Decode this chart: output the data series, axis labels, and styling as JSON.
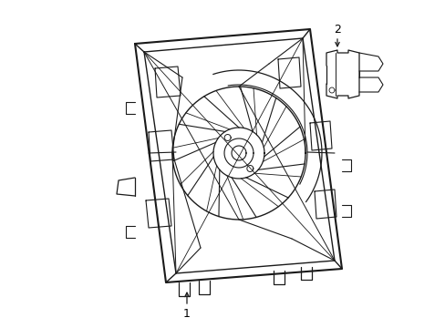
{
  "background_color": "#ffffff",
  "line_color": "#1a1a1a",
  "label_color": "#000000",
  "fig_width": 4.89,
  "fig_height": 3.6,
  "dpi": 100,
  "label1": "1",
  "label2": "2"
}
